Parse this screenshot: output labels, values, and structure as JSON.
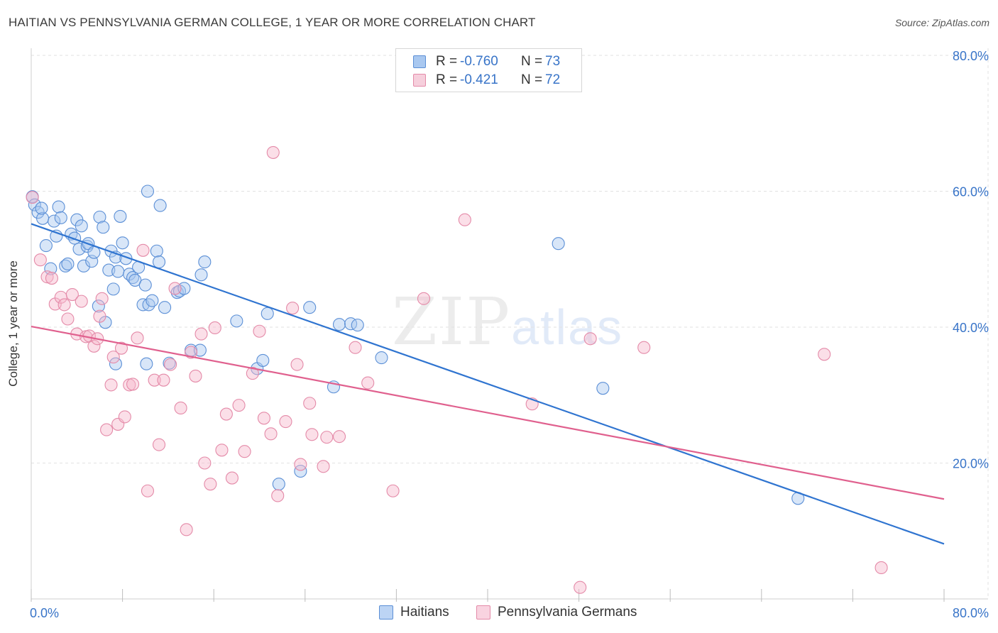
{
  "title": "HAITIAN VS PENNSYLVANIA GERMAN COLLEGE, 1 YEAR OR MORE CORRELATION CHART",
  "source": "Source: ZipAtlas.com",
  "watermark": {
    "zip": "ZIP",
    "atlas": "atlas"
  },
  "colors": {
    "blue_fill": "#a9c8f0",
    "blue_stroke": "#5b8fd6",
    "blue_line": "#2f74d0",
    "pink_fill": "#f6b8cb",
    "pink_stroke": "#e48aa8",
    "pink_line": "#e0608e",
    "axis_label": "#3874c8",
    "grid": "#e2e2e2"
  },
  "legend": {
    "rows": [
      {
        "r_label": "R =",
        "r_value": "-0.760",
        "n_label": "N =",
        "n_value": "73",
        "color": "blue"
      },
      {
        "r_label": "R =",
        "r_value": "-0.421",
        "n_label": "N =",
        "n_value": "72",
        "color": "pink"
      }
    ]
  },
  "bottom_legend": [
    "Haitians",
    "Pennsylvania Germans"
  ],
  "chart_data": {
    "type": "scatter",
    "title": "HAITIAN VS PENNSYLVANIA GERMAN COLLEGE, 1 YEAR OR MORE CORRELATION CHART",
    "xlabel": "",
    "ylabel": "College, 1 year or more",
    "xlim": [
      0,
      80
    ],
    "ylim": [
      0,
      80
    ],
    "x_tick_labels": [
      "0.0%",
      "80.0%"
    ],
    "y_tick_labels": [
      "20.0%",
      "40.0%",
      "60.0%",
      "80.0%"
    ],
    "y_ticks": [
      20,
      40,
      60,
      80
    ],
    "grid": true,
    "series": [
      {
        "name": "Haitians",
        "color": "blue",
        "trend": {
          "x": [
            0,
            80
          ],
          "y": [
            55.2,
            8.1
          ]
        },
        "points": [
          [
            0.1,
            59.2
          ],
          [
            0.3,
            58.0
          ],
          [
            0.6,
            56.9
          ],
          [
            1.0,
            56.0
          ],
          [
            1.3,
            52.0
          ],
          [
            0.9,
            57.5
          ],
          [
            1.7,
            48.6
          ],
          [
            2.0,
            55.6
          ],
          [
            2.2,
            53.4
          ],
          [
            2.4,
            57.7
          ],
          [
            2.6,
            56.1
          ],
          [
            3.0,
            49.0
          ],
          [
            3.2,
            49.3
          ],
          [
            3.5,
            53.7
          ],
          [
            3.8,
            53.1
          ],
          [
            4.0,
            55.8
          ],
          [
            4.2,
            51.5
          ],
          [
            4.4,
            54.9
          ],
          [
            4.6,
            49.0
          ],
          [
            4.9,
            51.9
          ],
          [
            5.0,
            52.3
          ],
          [
            5.3,
            49.7
          ],
          [
            5.5,
            51.0
          ],
          [
            5.9,
            43.1
          ],
          [
            6.0,
            56.2
          ],
          [
            6.3,
            54.7
          ],
          [
            6.5,
            40.7
          ],
          [
            6.8,
            48.4
          ],
          [
            7.0,
            51.2
          ],
          [
            7.2,
            45.6
          ],
          [
            7.4,
            50.3
          ],
          [
            7.6,
            48.2
          ],
          [
            7.4,
            34.6
          ],
          [
            7.8,
            56.3
          ],
          [
            8.0,
            52.4
          ],
          [
            8.3,
            50.1
          ],
          [
            8.6,
            47.8
          ],
          [
            8.9,
            47.3
          ],
          [
            9.1,
            46.9
          ],
          [
            9.4,
            48.8
          ],
          [
            9.8,
            43.3
          ],
          [
            10.0,
            46.2
          ],
          [
            10.1,
            34.6
          ],
          [
            10.3,
            43.3
          ],
          [
            10.6,
            43.9
          ],
          [
            10.2,
            60.0
          ],
          [
            11.0,
            51.2
          ],
          [
            11.2,
            49.6
          ],
          [
            11.3,
            57.9
          ],
          [
            11.7,
            42.9
          ],
          [
            12.1,
            34.7
          ],
          [
            12.8,
            45.1
          ],
          [
            13.0,
            45.3
          ],
          [
            13.4,
            45.7
          ],
          [
            14.0,
            36.6
          ],
          [
            14.8,
            36.6
          ],
          [
            14.9,
            47.7
          ],
          [
            15.2,
            49.6
          ],
          [
            18.0,
            40.9
          ],
          [
            19.8,
            33.9
          ],
          [
            20.3,
            35.1
          ],
          [
            20.7,
            42.0
          ],
          [
            21.7,
            16.9
          ],
          [
            23.6,
            18.8
          ],
          [
            24.4,
            42.9
          ],
          [
            26.5,
            31.2
          ],
          [
            27.0,
            40.4
          ],
          [
            28.0,
            40.5
          ],
          [
            28.6,
            40.3
          ],
          [
            30.7,
            35.5
          ],
          [
            46.2,
            52.3
          ],
          [
            50.1,
            31.0
          ],
          [
            67.2,
            14.8
          ]
        ]
      },
      {
        "name": "Pennsylvania Germans",
        "color": "pink",
        "trend": {
          "x": [
            0,
            80
          ],
          "y": [
            40.1,
            14.7
          ]
        },
        "points": [
          [
            0.1,
            59.1
          ],
          [
            0.8,
            49.9
          ],
          [
            1.4,
            47.4
          ],
          [
            1.8,
            47.2
          ],
          [
            2.1,
            43.4
          ],
          [
            2.6,
            44.4
          ],
          [
            2.9,
            43.3
          ],
          [
            3.2,
            41.2
          ],
          [
            3.6,
            44.8
          ],
          [
            4.0,
            39.0
          ],
          [
            4.4,
            43.8
          ],
          [
            4.8,
            38.6
          ],
          [
            5.1,
            38.7
          ],
          [
            5.5,
            37.2
          ],
          [
            5.8,
            38.3
          ],
          [
            6.0,
            41.6
          ],
          [
            6.2,
            44.2
          ],
          [
            6.6,
            24.9
          ],
          [
            7.0,
            31.5
          ],
          [
            7.2,
            35.6
          ],
          [
            7.6,
            25.7
          ],
          [
            7.9,
            36.9
          ],
          [
            8.2,
            26.8
          ],
          [
            8.6,
            31.5
          ],
          [
            8.9,
            31.6
          ],
          [
            9.3,
            38.4
          ],
          [
            9.8,
            51.3
          ],
          [
            10.2,
            15.9
          ],
          [
            10.8,
            32.2
          ],
          [
            11.2,
            22.7
          ],
          [
            11.6,
            32.2
          ],
          [
            12.2,
            34.5
          ],
          [
            12.6,
            45.7
          ],
          [
            13.1,
            28.1
          ],
          [
            13.6,
            10.2
          ],
          [
            14.0,
            36.3
          ],
          [
            14.4,
            32.8
          ],
          [
            14.9,
            39.0
          ],
          [
            15.2,
            20.0
          ],
          [
            15.7,
            16.9
          ],
          [
            16.1,
            39.9
          ],
          [
            16.7,
            21.9
          ],
          [
            17.1,
            27.2
          ],
          [
            17.6,
            17.8
          ],
          [
            18.2,
            28.5
          ],
          [
            18.7,
            21.7
          ],
          [
            19.4,
            33.2
          ],
          [
            20.0,
            39.4
          ],
          [
            20.4,
            26.6
          ],
          [
            21.0,
            24.3
          ],
          [
            21.2,
            65.7
          ],
          [
            21.6,
            15.2
          ],
          [
            22.3,
            26.1
          ],
          [
            22.9,
            42.8
          ],
          [
            23.3,
            34.5
          ],
          [
            23.6,
            19.8
          ],
          [
            24.4,
            28.8
          ],
          [
            24.6,
            24.2
          ],
          [
            25.6,
            19.5
          ],
          [
            25.9,
            23.8
          ],
          [
            27.0,
            23.9
          ],
          [
            28.4,
            37.0
          ],
          [
            29.5,
            31.8
          ],
          [
            31.7,
            15.9
          ],
          [
            34.4,
            44.2
          ],
          [
            38.0,
            55.8
          ],
          [
            43.9,
            28.7
          ],
          [
            48.1,
            1.7
          ],
          [
            49.0,
            38.3
          ],
          [
            53.7,
            37.0
          ],
          [
            69.5,
            36.0
          ],
          [
            74.5,
            4.6
          ]
        ]
      }
    ]
  }
}
